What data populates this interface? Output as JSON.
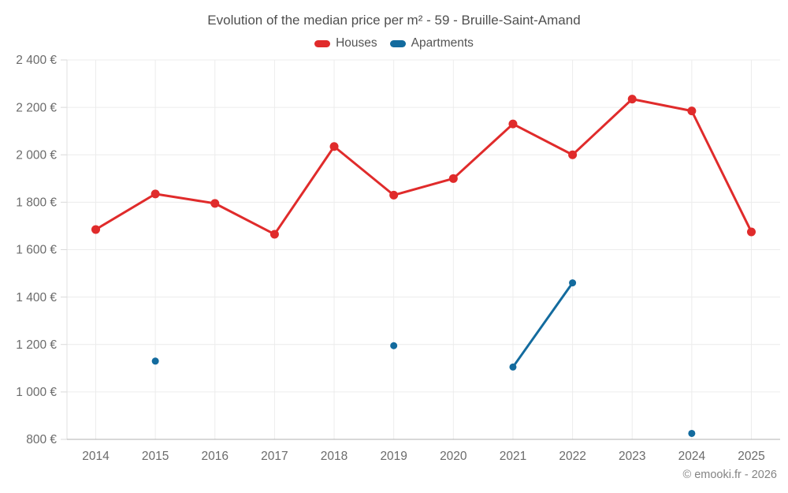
{
  "header": {
    "title": "Evolution of the median price per m² - 59 - Bruille-Saint-Amand"
  },
  "footer": {
    "copyright": "© emooki.fr - 2026"
  },
  "colors": {
    "houses": "#e02b2b",
    "apartments": "#136b9e",
    "gridline": "#ececec",
    "y_axis_line": "#e0e0e0",
    "x_axis_line": "#b0b0b0",
    "tick_mark": "#d9d9d9",
    "tick_label_text": "#6b6b6b",
    "title_text": "#4f4f4f"
  },
  "chart_data": {
    "type": "line",
    "title": "Evolution of the median price per m² - 59 - Bruille-Saint-Amand",
    "categories": [
      "2014",
      "2015",
      "2016",
      "2017",
      "2018",
      "2019",
      "2020",
      "2021",
      "2022",
      "2023",
      "2024",
      "2025"
    ],
    "series": [
      {
        "name": "Houses",
        "color": "#e02b2b",
        "marker_radius": 5.5,
        "values": [
          1685,
          1835,
          1795,
          1665,
          2035,
          1830,
          1900,
          2130,
          2000,
          2235,
          2185,
          1675
        ]
      },
      {
        "name": "Apartments",
        "color": "#136b9e",
        "marker_radius": 4.5,
        "values": [
          null,
          1130,
          null,
          null,
          null,
          1195,
          null,
          1105,
          1460,
          null,
          825,
          null
        ]
      }
    ],
    "xlabel": "",
    "ylabel": "",
    "ylim": [
      800,
      2400
    ],
    "y_ticks": [
      {
        "value": 800,
        "label": "800 €"
      },
      {
        "value": 1000,
        "label": "1 000 €"
      },
      {
        "value": 1200,
        "label": "1 200 €"
      },
      {
        "value": 1400,
        "label": "1 400 €"
      },
      {
        "value": 1600,
        "label": "1 600 €"
      },
      {
        "value": 1800,
        "label": "1 800 €"
      },
      {
        "value": 2000,
        "label": "2 000 €"
      },
      {
        "value": 2200,
        "label": "2 200 €"
      },
      {
        "value": 2400,
        "label": "2 400 €"
      }
    ],
    "grid": true,
    "legend_position": "top"
  }
}
